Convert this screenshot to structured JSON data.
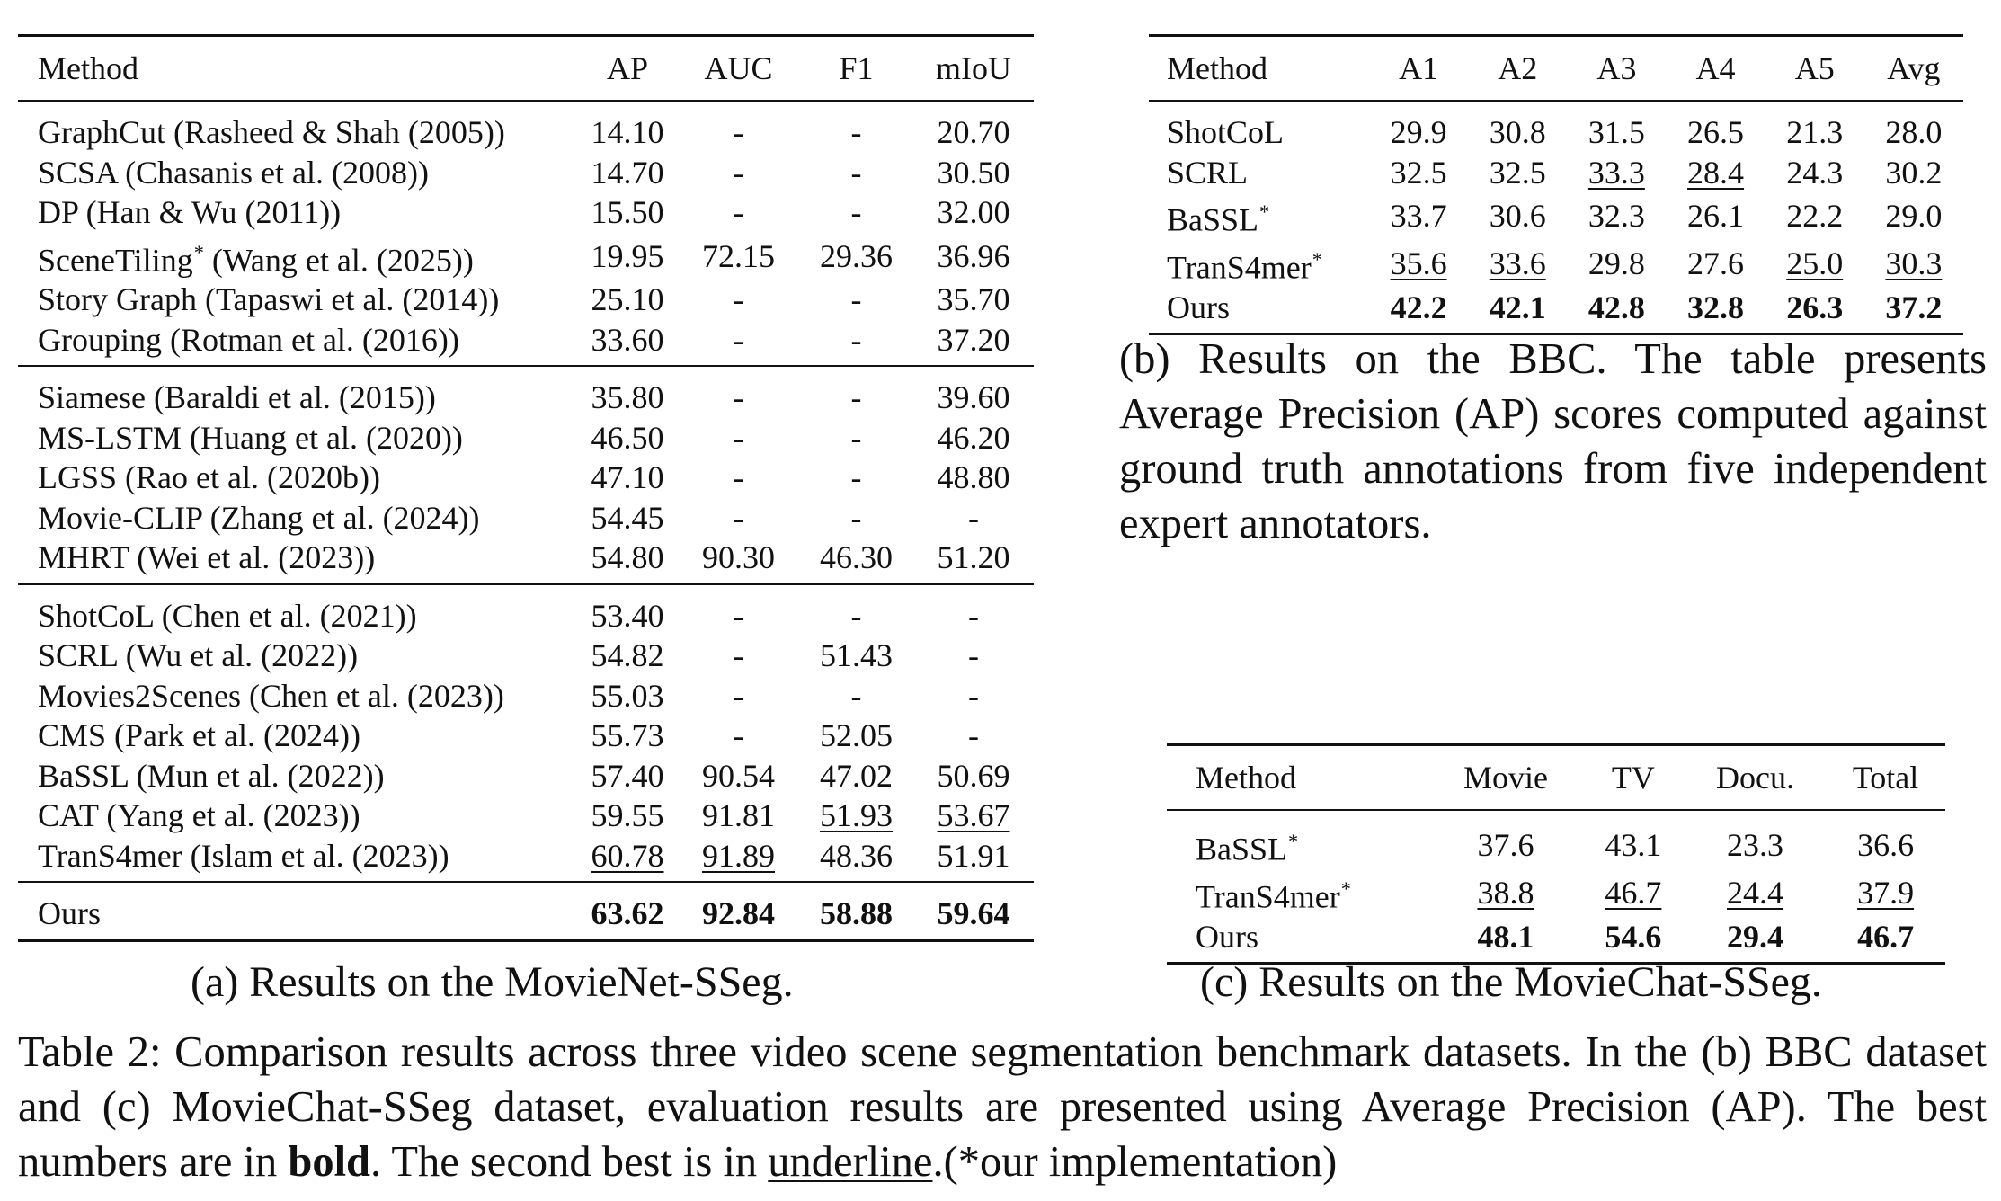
{
  "table_a": {
    "headers": [
      "Method",
      "AP",
      "AUC",
      "F1",
      "mIoU"
    ],
    "groups": [
      [
        [
          "GraphCut (Rasheed & Shah (2005))",
          "14.10",
          "-",
          "-",
          "20.70"
        ],
        [
          "SCSA (Chasanis et al. (2008))",
          "14.70",
          "-",
          "-",
          "30.50"
        ],
        [
          "DP (Han & Wu (2011))",
          "15.50",
          "-",
          "-",
          "32.00"
        ],
        [
          "SceneTiling* (Wang et al. (2025))",
          "19.95",
          "72.15",
          "29.36",
          "36.96"
        ],
        [
          "Story Graph (Tapaswi et al. (2014))",
          "25.10",
          "-",
          "-",
          "35.70"
        ],
        [
          "Grouping (Rotman et al. (2016))",
          "33.60",
          "-",
          "-",
          "37.20"
        ]
      ],
      [
        [
          "Siamese (Baraldi et al. (2015))",
          "35.80",
          "-",
          "-",
          "39.60"
        ],
        [
          "MS-LSTM (Huang et al. (2020))",
          "46.50",
          "-",
          "-",
          "46.20"
        ],
        [
          "LGSS (Rao et al. (2020b))",
          "47.10",
          "-",
          "-",
          "48.80"
        ],
        [
          "Movie-CLIP (Zhang et al. (2024))",
          "54.45",
          "-",
          "-",
          "-"
        ],
        [
          "MHRT (Wei et al. (2023))",
          "54.80",
          "90.30",
          "46.30",
          "51.20"
        ]
      ],
      [
        [
          "ShotCoL (Chen et al. (2021))",
          "53.40",
          "-",
          "-",
          "-"
        ],
        [
          "SCRL (Wu et al. (2022))",
          "54.82",
          "-",
          "51.43",
          "-"
        ],
        [
          "Movies2Scenes (Chen et al. (2023))",
          "55.03",
          "-",
          "-",
          "-"
        ],
        [
          "CMS (Park et al. (2024))",
          "55.73",
          "-",
          "52.05",
          "-"
        ],
        [
          "BaSSL (Mun et al. (2022))",
          "57.40",
          "90.54",
          "47.02",
          "50.69"
        ],
        [
          "CAT (Yang et al. (2023))",
          "59.55",
          "91.81",
          "51.93",
          "53.67"
        ],
        [
          "TranS4mer (Islam et al. (2023))",
          "60.78",
          "91.89",
          "48.36",
          "51.91"
        ]
      ],
      [
        [
          "Ours",
          "63.62",
          "92.84",
          "58.88",
          "59.64"
        ]
      ]
    ],
    "caption": "(a) Results on the MovieNet-SSeg."
  },
  "table_b": {
    "headers": [
      "Method",
      "A1",
      "A2",
      "A3",
      "A4",
      "A5",
      "Avg"
    ],
    "rows": [
      [
        "ShotCoL",
        "29.9",
        "30.8",
        "31.5",
        "26.5",
        "21.3",
        "28.0"
      ],
      [
        "SCRL",
        "32.5",
        "32.5",
        "33.3",
        "28.4",
        "24.3",
        "30.2"
      ],
      [
        "BaSSL*",
        "33.7",
        "30.6",
        "32.3",
        "26.1",
        "22.2",
        "29.0"
      ],
      [
        "TranS4mer*",
        "35.6",
        "33.6",
        "29.8",
        "27.6",
        "25.0",
        "30.3"
      ],
      [
        "Ours",
        "42.2",
        "42.1",
        "42.8",
        "32.8",
        "26.3",
        "37.2"
      ]
    ],
    "caption": "(b) Results on the BBC. The table presents Average Precision (AP) scores computed against ground truth annotations from five independent expert annotators."
  },
  "table_c": {
    "headers": [
      "Method",
      "Movie",
      "TV",
      "Docu.",
      "Total"
    ],
    "rows": [
      [
        "BaSSL*",
        "37.6",
        "43.1",
        "23.3",
        "36.6"
      ],
      [
        "TranS4mer*",
        "38.8",
        "46.7",
        "24.4",
        "37.9"
      ],
      [
        "Ours",
        "48.1",
        "54.6",
        "29.4",
        "46.7"
      ]
    ],
    "caption": "(c) Results on the MovieChat-SSeg."
  },
  "main_caption": {
    "part1": "Table 2: Comparison results across three video scene segmentation benchmark datasets. In the (b) BBC dataset and (c) MovieChat-SSeg dataset, evaluation results are presented using Average Precision (AP). The best numbers are in ",
    "bold_word": "bold",
    "part2": ". The second best is in ",
    "underline_word": "underline",
    "part3": ".(*our implementation)"
  }
}
